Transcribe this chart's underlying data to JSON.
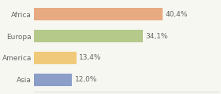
{
  "categories": [
    "Africa",
    "Europa",
    "America",
    "Asia"
  ],
  "values": [
    40.4,
    34.1,
    13.4,
    12.0
  ],
  "labels": [
    "40,4%",
    "34,1%",
    "13,4%",
    "12,0%"
  ],
  "colors": [
    "#e8aa80",
    "#b5c98a",
    "#f0ca7a",
    "#8a9ec8"
  ],
  "background_color": "#f7f7f2",
  "bar_height": 0.55,
  "xlim": [
    0,
    58
  ],
  "label_fontsize": 6.5,
  "tick_fontsize": 6.5,
  "label_color": "#666666",
  "tick_color": "#666666"
}
